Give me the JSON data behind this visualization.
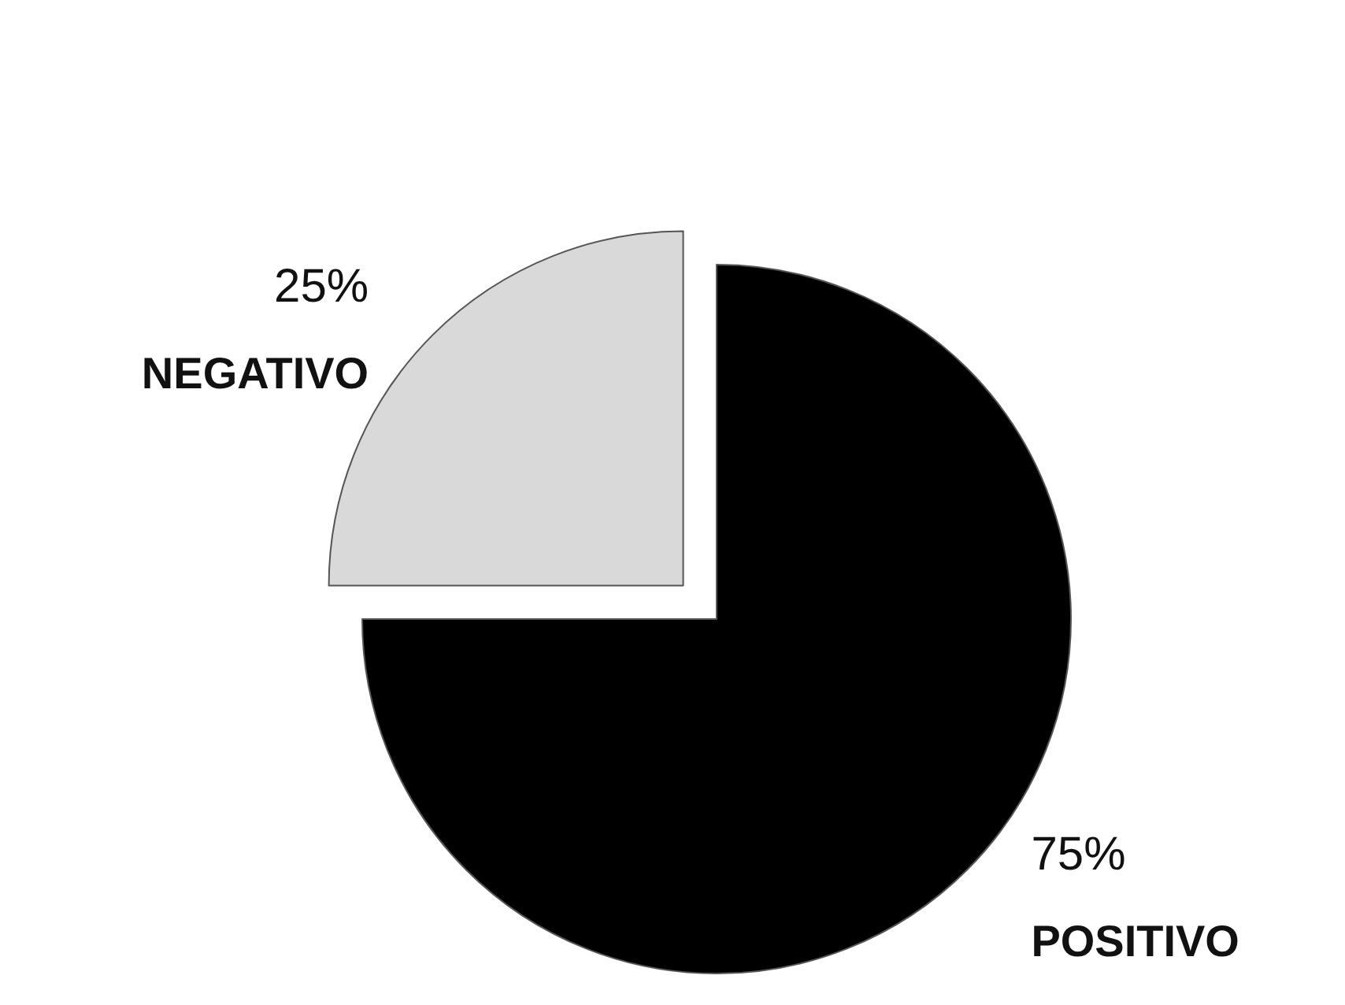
{
  "chart_data": {
    "type": "pie",
    "categories": [
      "POSITIVO",
      "NEGATIVO"
    ],
    "values": [
      75,
      25
    ],
    "colors": [
      "#000000",
      "#d9d9d9"
    ],
    "value_labels": [
      "75%",
      "25%"
    ]
  }
}
